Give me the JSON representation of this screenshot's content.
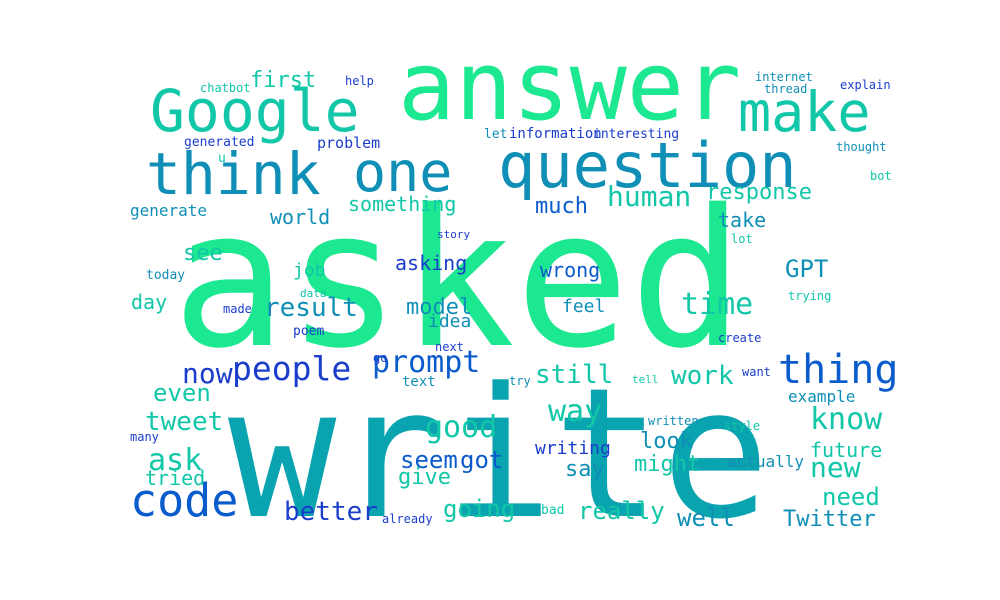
{
  "colors": {
    "mint": "#1be890",
    "teal": "#0aa4b0",
    "aqua": "#11c7a8",
    "blue": "#0a5ccc",
    "navy": "#1a3ecb",
    "sea": "#0f8fb6",
    "lightmint": "#34e39e"
  },
  "words": [
    "asked",
    "write",
    "answer",
    "question",
    "Google",
    "think",
    "one",
    "make",
    "code",
    "thing",
    "prompt",
    "people",
    "now",
    "human",
    "response",
    "know",
    "good",
    "time",
    "way",
    "work",
    "model",
    "first",
    "still",
    "see",
    "GPT",
    "result",
    "much",
    "something",
    "ask",
    "tweet",
    "even",
    "new",
    "going",
    "need",
    "really",
    "better",
    "seem",
    "got",
    "give",
    "say",
    "look",
    "might",
    "future",
    "well",
    "Twitter",
    "world",
    "take",
    "wrong",
    "asking",
    "day",
    "job",
    "feel",
    "idea",
    "example",
    "writing",
    "actually",
    "tried",
    "generate",
    "chatbot",
    "help",
    "internet",
    "thread",
    "explain",
    "thought",
    "bot",
    "generated",
    "problem",
    "let",
    "information",
    "interesting",
    "u",
    "story",
    "lot",
    "today",
    "data",
    "made",
    "poem",
    "create",
    "trying",
    "next",
    "go",
    "text",
    "try",
    "tell",
    "want",
    "written",
    "style",
    "many",
    "already",
    "bad"
  ]
}
